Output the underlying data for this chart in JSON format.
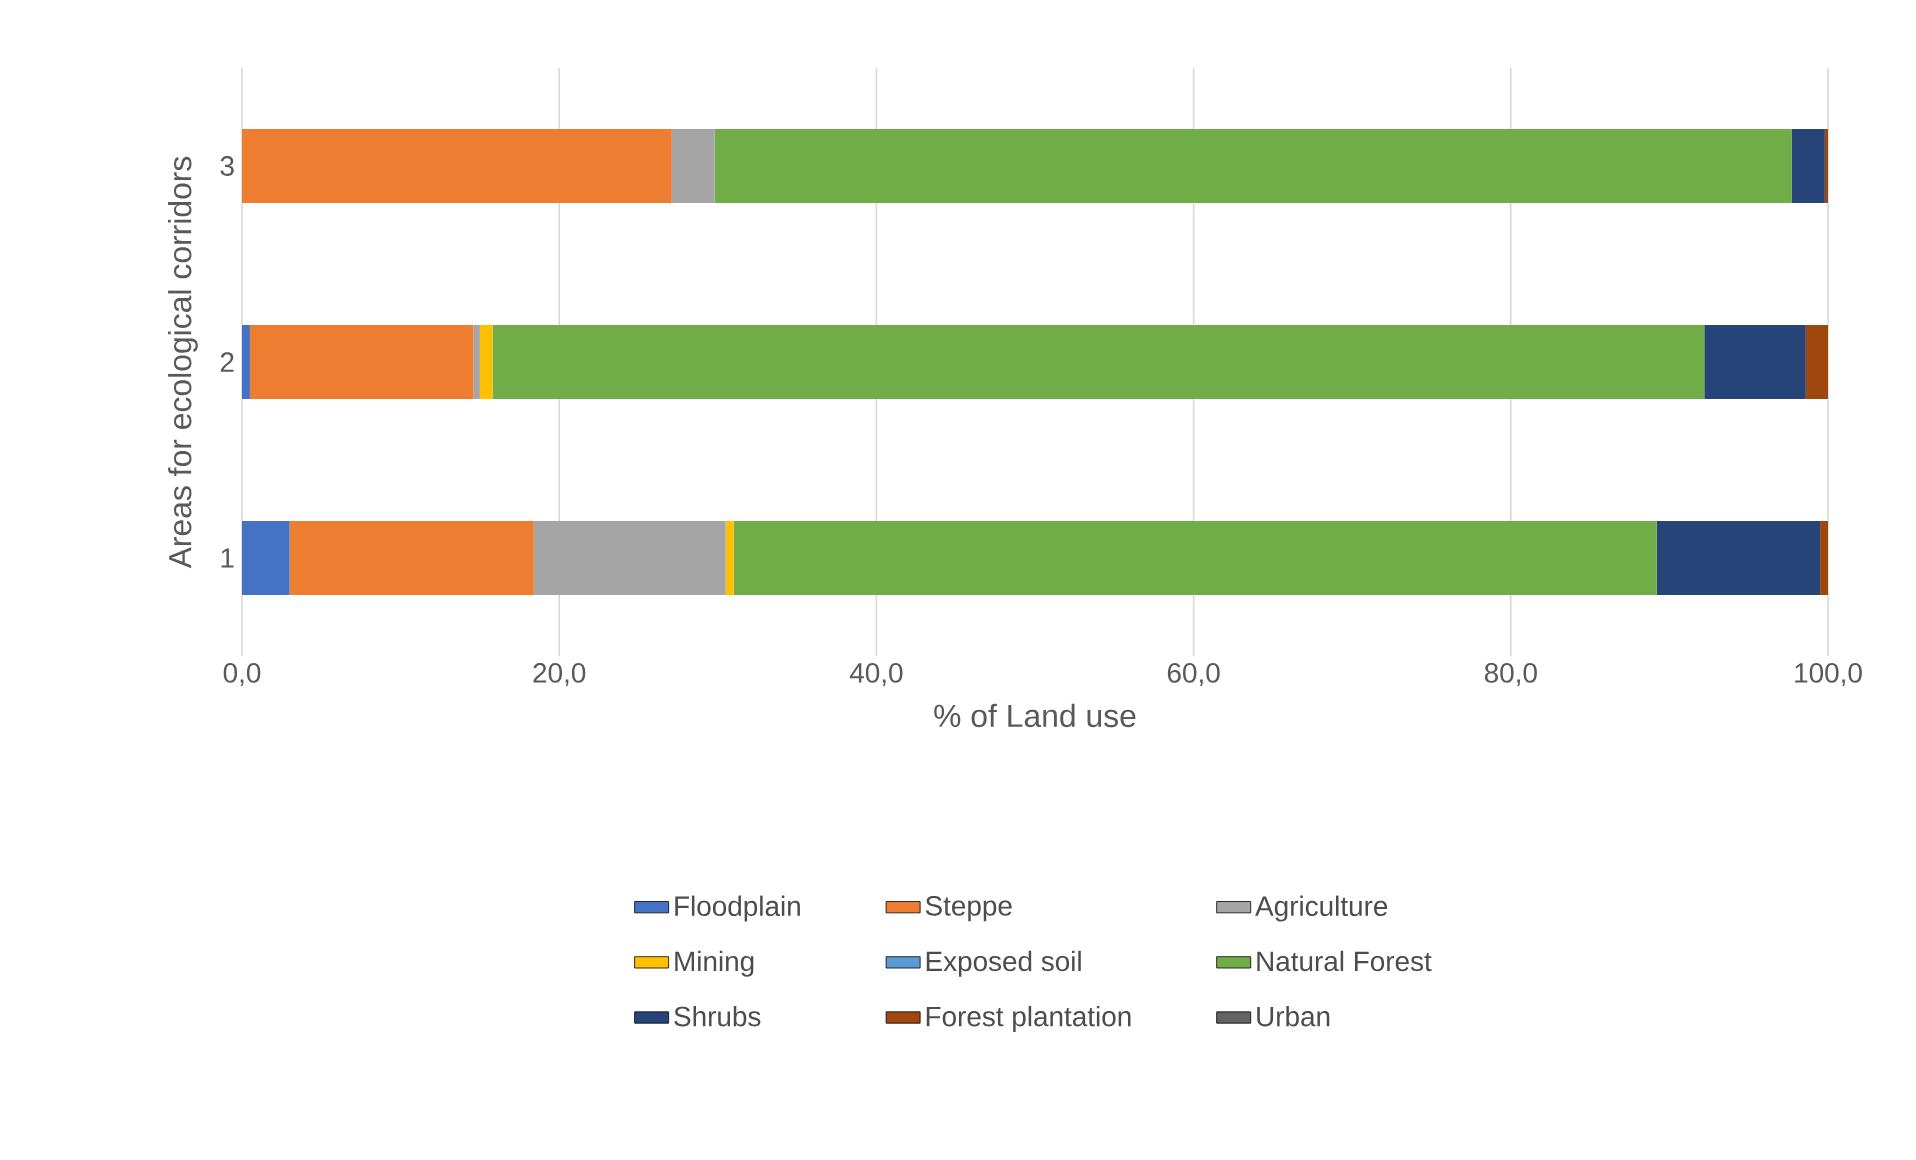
{
  "chart_data": {
    "type": "bar",
    "orientation": "horizontal",
    "stacked": true,
    "xlabel": "% of Land use",
    "ylabel": "Areas for ecological corridors",
    "categories": [
      "3",
      "2",
      "1"
    ],
    "series": [
      {
        "name": "Floodplain",
        "color": "#4472c4",
        "values": [
          0,
          0.5,
          3.0
        ]
      },
      {
        "name": "Steppe",
        "color": "#ed7d31",
        "values": [
          27.1,
          14.1,
          15.4
        ]
      },
      {
        "name": "Agriculture",
        "color": "#a5a5a5",
        "values": [
          2.7,
          0.4,
          12.1
        ]
      },
      {
        "name": "Mining",
        "color": "#ffc000",
        "values": [
          0,
          0.8,
          0.5
        ]
      },
      {
        "name": "Exposed soil",
        "color": "#5b9bd5",
        "values": [
          0,
          0,
          0
        ]
      },
      {
        "name": "Natural Forest",
        "color": "#70ad47",
        "values": [
          67.9,
          76.4,
          58.2
        ]
      },
      {
        "name": "Shrubs",
        "color": "#264478",
        "values": [
          2.1,
          6.4,
          10.3
        ]
      },
      {
        "name": "Forest plantation",
        "color": "#9e480e",
        "values": [
          0.2,
          1.4,
          0.5
        ]
      },
      {
        "name": "Urban",
        "color": "#636363",
        "values": [
          0,
          0,
          0
        ]
      }
    ],
    "xlim": [
      0,
      100
    ],
    "xticks": [
      {
        "value": 0,
        "label": "0,0"
      },
      {
        "value": 20,
        "label": "20,0"
      },
      {
        "value": 40,
        "label": "40,0"
      },
      {
        "value": 60,
        "label": "60,0"
      },
      {
        "value": 80,
        "label": "80,0"
      },
      {
        "value": 100,
        "label": "100,0"
      }
    ],
    "grid": "x",
    "legend": "bottom"
  }
}
